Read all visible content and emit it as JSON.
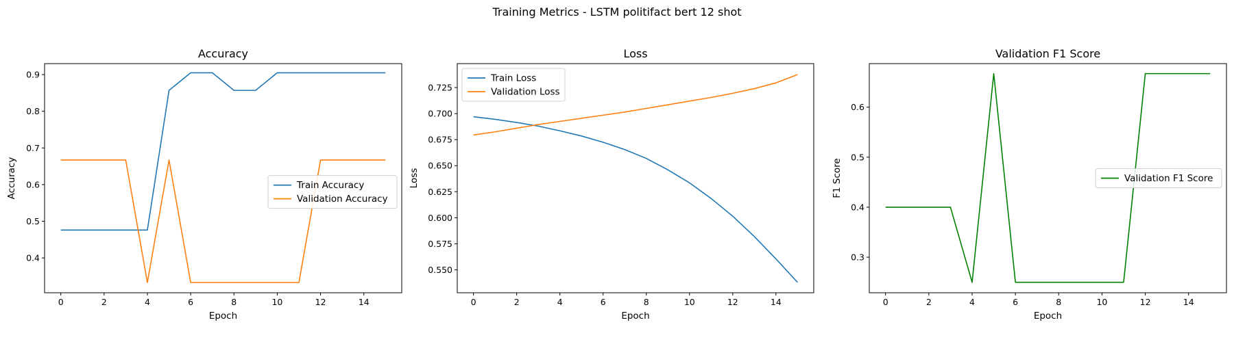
{
  "figure": {
    "title": "Training Metrics - LSTM politifact bert 12 shot"
  },
  "chart_data": [
    {
      "type": "line",
      "title": "Accuracy",
      "xlabel": "Epoch",
      "ylabel": "Accuracy",
      "xlim": [
        -0.75,
        15.75
      ],
      "ylim": [
        0.305,
        0.93
      ],
      "xticks": [
        0,
        2,
        4,
        6,
        8,
        10,
        12,
        14
      ],
      "yticks": [
        0.4,
        0.5,
        0.6,
        0.7,
        0.8,
        0.9
      ],
      "xtick_labels": [
        "0",
        "2",
        "4",
        "6",
        "8",
        "10",
        "12",
        "14"
      ],
      "ytick_labels": [
        "0.4",
        "0.5",
        "0.6",
        "0.7",
        "0.8",
        "0.9"
      ],
      "grid": false,
      "legend_position": "center-right",
      "x": [
        0,
        1,
        2,
        3,
        4,
        5,
        6,
        7,
        8,
        9,
        10,
        11,
        12,
        13,
        14,
        15
      ],
      "series": [
        {
          "name": "Train Accuracy",
          "color": "#1f77b4",
          "values": [
            0.476,
            0.476,
            0.476,
            0.476,
            0.476,
            0.857,
            0.905,
            0.905,
            0.857,
            0.857,
            0.905,
            0.905,
            0.905,
            0.905,
            0.905,
            0.905
          ]
        },
        {
          "name": "Validation Accuracy",
          "color": "#ff7f0e",
          "values": [
            0.667,
            0.667,
            0.667,
            0.667,
            0.333,
            0.667,
            0.333,
            0.333,
            0.333,
            0.333,
            0.333,
            0.333,
            0.667,
            0.667,
            0.667,
            0.667
          ]
        }
      ]
    },
    {
      "type": "line",
      "title": "Loss",
      "xlabel": "Epoch",
      "ylabel": "Loss",
      "xlim": [
        -0.75,
        15.75
      ],
      "ylim": [
        0.528,
        0.748
      ],
      "xticks": [
        0,
        2,
        4,
        6,
        8,
        10,
        12,
        14
      ],
      "yticks": [
        0.55,
        0.575,
        0.6,
        0.625,
        0.65,
        0.675,
        0.7,
        0.725
      ],
      "xtick_labels": [
        "0",
        "2",
        "4",
        "6",
        "8",
        "10",
        "12",
        "14"
      ],
      "ytick_labels": [
        "0.550",
        "0.575",
        "0.600",
        "0.625",
        "0.650",
        "0.675",
        "0.700",
        "0.725"
      ],
      "grid": false,
      "legend_position": "upper-left",
      "x": [
        0,
        1,
        2,
        3,
        4,
        5,
        6,
        7,
        8,
        9,
        10,
        11,
        12,
        13,
        14,
        15
      ],
      "series": [
        {
          "name": "Train Loss",
          "color": "#1f77b4",
          "values": [
            0.697,
            0.6945,
            0.6915,
            0.688,
            0.6835,
            0.6785,
            0.6725,
            0.6655,
            0.657,
            0.646,
            0.6335,
            0.6185,
            0.6015,
            0.582,
            0.5605,
            0.538
          ]
        },
        {
          "name": "Validation Loss",
          "color": "#ff7f0e",
          "values": [
            0.6795,
            0.6825,
            0.686,
            0.6895,
            0.6925,
            0.6955,
            0.6985,
            0.7015,
            0.705,
            0.7085,
            0.712,
            0.7155,
            0.7195,
            0.724,
            0.7295,
            0.7375
          ]
        }
      ]
    },
    {
      "type": "line",
      "title": "Validation F1 Score",
      "xlabel": "Epoch",
      "ylabel": "F1 Score",
      "xlim": [
        -0.75,
        15.75
      ],
      "ylim": [
        0.229,
        0.687
      ],
      "xticks": [
        0,
        2,
        4,
        6,
        8,
        10,
        12,
        14
      ],
      "yticks": [
        0.3,
        0.4,
        0.5,
        0.6
      ],
      "xtick_labels": [
        "0",
        "2",
        "4",
        "6",
        "8",
        "10",
        "12",
        "14"
      ],
      "ytick_labels": [
        "0.3",
        "0.4",
        "0.5",
        "0.6"
      ],
      "grid": false,
      "legend_position": "center-right",
      "x": [
        0,
        1,
        2,
        3,
        4,
        5,
        6,
        7,
        8,
        9,
        10,
        11,
        12,
        13,
        14,
        15
      ],
      "series": [
        {
          "name": "Validation F1 Score",
          "color": "#008000",
          "values": [
            0.4,
            0.4,
            0.4,
            0.4,
            0.25,
            0.667,
            0.25,
            0.25,
            0.25,
            0.25,
            0.25,
            0.25,
            0.667,
            0.667,
            0.667,
            0.667
          ]
        }
      ]
    }
  ]
}
